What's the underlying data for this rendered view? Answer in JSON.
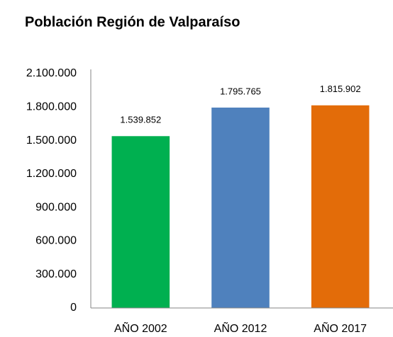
{
  "chart_data": {
    "type": "bar",
    "title": "Población Región de Valparaíso",
    "categories": [
      "AÑO 2002",
      "AÑO 2012",
      "AÑO 2017"
    ],
    "values": [
      1539852,
      1795765,
      1815902
    ],
    "value_labels": [
      "1.539.852",
      "1.795.765",
      "1.815.902"
    ],
    "colors": [
      "#00b050",
      "#4f81bd",
      "#e36c09"
    ],
    "ylim": [
      0,
      2100000
    ],
    "yticks": [
      0,
      {
        "value": 300000,
        "label": "300.000"
      },
      {
        "value": 600000,
        "label": "600.000"
      },
      {
        "value": 900000,
        "label": "900.000"
      },
      {
        "value": 1200000,
        "label": "1.200.000"
      },
      {
        "value": 1500000,
        "label": "1.500.000"
      },
      {
        "value": 1800000,
        "label": "1.800.000"
      },
      {
        "value": 2100000,
        "label": "2.100.000"
      }
    ],
    "grid": false
  }
}
